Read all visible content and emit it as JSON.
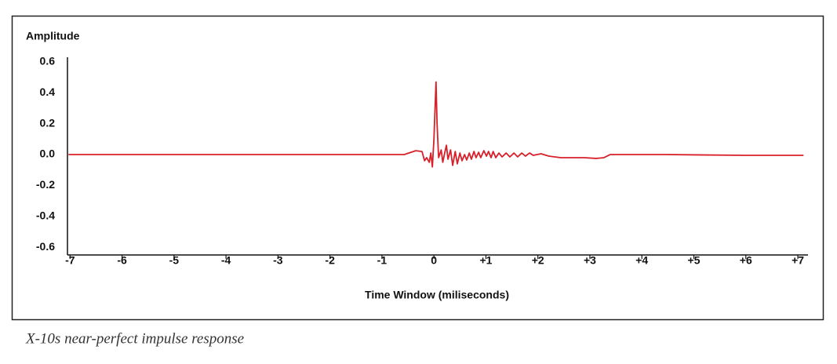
{
  "chart_data": {
    "type": "line",
    "y_label": "Amplitude",
    "x_label": "Time Window (miliseconds)",
    "caption": "X-10s near-perfect impulse response",
    "xlim": [
      -7.05,
      7.12
    ],
    "ylim": [
      -0.65,
      0.63
    ],
    "xticks": [
      -7,
      -6,
      -5,
      -4,
      -3,
      -2,
      -1,
      0,
      {
        "value": 1,
        "label": "+1"
      },
      {
        "value": 2,
        "label": "+2"
      },
      {
        "value": 3,
        "label": "+3"
      },
      {
        "value": 4,
        "label": "+4"
      },
      {
        "value": 5,
        "label": "+5"
      },
      {
        "value": 6,
        "label": "+6"
      },
      {
        "value": 7,
        "label": "+7"
      }
    ],
    "yticks": [
      0.6,
      0.4,
      0.2,
      {
        "value": 0,
        "label": "0.0"
      },
      -0.2,
      -0.4,
      -0.6
    ],
    "series": [
      {
        "color": "#d7202a",
        "x": [
          -7.03,
          -2.0,
          -0.57,
          -0.35,
          -0.23,
          -0.18,
          -0.14,
          -0.09,
          -0.06,
          -0.03,
          0.0,
          0.04,
          0.06,
          0.09,
          0.14,
          0.17,
          0.21,
          0.24,
          0.27,
          0.32,
          0.36,
          0.41,
          0.45,
          0.5,
          0.54,
          0.59,
          0.63,
          0.68,
          0.72,
          0.77,
          0.81,
          0.86,
          0.9,
          0.96,
          1.01,
          1.05,
          1.1,
          1.14,
          1.19,
          1.25,
          1.31,
          1.39,
          1.46,
          1.54,
          1.61,
          1.69,
          1.76,
          1.84,
          1.91,
          2.06,
          2.21,
          2.44,
          2.67,
          2.89,
          3.12,
          3.27,
          3.39,
          4.47,
          5.98,
          7.11
        ],
        "values": [
          0,
          0,
          0,
          0.025,
          0.02,
          -0.04,
          -0.02,
          -0.05,
          0.01,
          -0.08,
          0.1,
          0.47,
          0.2,
          -0.02,
          0.03,
          -0.05,
          0.015,
          0.06,
          -0.03,
          0.03,
          -0.07,
          0.02,
          -0.06,
          0.01,
          -0.04,
          0,
          -0.035,
          0.01,
          -0.03,
          0.02,
          -0.02,
          0.015,
          -0.02,
          0.025,
          -0.01,
          0.02,
          -0.02,
          0.02,
          -0.02,
          0.01,
          -0.015,
          0.01,
          -0.015,
          0.01,
          -0.015,
          0.01,
          -0.01,
          0.01,
          -0.005,
          0.005,
          -0.01,
          -0.02,
          -0.02,
          -0.02,
          -0.025,
          -0.02,
          0,
          0,
          -0.005,
          -0.005
        ]
      }
    ]
  }
}
